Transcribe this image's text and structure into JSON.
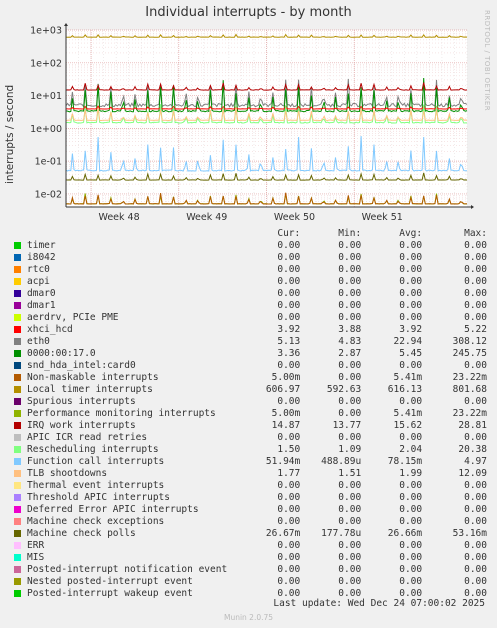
{
  "title": "Individual interrupts - by month",
  "side_label": "RRDTOOL / TOBI OETIKER",
  "ylabel": "interrupts / second",
  "legend_headers": {
    "cur": "Cur:",
    "min": "Min:",
    "avg": "Avg:",
    "max": "Max:"
  },
  "legend": [
    {
      "name": "timer",
      "color": "#00cc00",
      "cur": "0.00",
      "min": "0.00",
      "avg": "0.00",
      "max": "0.00"
    },
    {
      "name": "i8042",
      "color": "#0066b3",
      "cur": "0.00",
      "min": "0.00",
      "avg": "0.00",
      "max": "0.00"
    },
    {
      "name": "rtc0",
      "color": "#ff8000",
      "cur": "0.00",
      "min": "0.00",
      "avg": "0.00",
      "max": "0.00"
    },
    {
      "name": "acpi",
      "color": "#ffcc00",
      "cur": "0.00",
      "min": "0.00",
      "avg": "0.00",
      "max": "0.00"
    },
    {
      "name": "dmar0",
      "color": "#330099",
      "cur": "0.00",
      "min": "0.00",
      "avg": "0.00",
      "max": "0.00"
    },
    {
      "name": "dmar1",
      "color": "#990099",
      "cur": "0.00",
      "min": "0.00",
      "avg": "0.00",
      "max": "0.00"
    },
    {
      "name": "aerdrv, PCIe PME",
      "color": "#ccff00",
      "cur": "0.00",
      "min": "0.00",
      "avg": "0.00",
      "max": "0.00"
    },
    {
      "name": "xhci_hcd",
      "color": "#ff0000",
      "cur": "3.92",
      "min": "3.88",
      "avg": "3.92",
      "max": "5.22"
    },
    {
      "name": "eth0",
      "color": "#808080",
      "cur": "5.13",
      "min": "4.83",
      "avg": "22.94",
      "max": "308.12"
    },
    {
      "name": "0000:00:17.0",
      "color": "#008f00",
      "cur": "3.36",
      "min": "2.87",
      "avg": "5.45",
      "max": "245.75"
    },
    {
      "name": "snd_hda_intel:card0",
      "color": "#00487d",
      "cur": "0.00",
      "min": "0.00",
      "avg": "0.00",
      "max": "0.00"
    },
    {
      "name": "Non-maskable interrupts",
      "color": "#b35a00",
      "cur": "5.00m",
      "min": "0.00",
      "avg": "5.41m",
      "max": "23.22m"
    },
    {
      "name": "Local timer interrupts",
      "color": "#b38f00",
      "cur": "606.97",
      "min": "592.63",
      "avg": "616.13",
      "max": "801.68"
    },
    {
      "name": "Spurious interrupts",
      "color": "#6b006b",
      "cur": "0.00",
      "min": "0.00",
      "avg": "0.00",
      "max": "0.00"
    },
    {
      "name": "Performance monitoring interrupts",
      "color": "#8fb300",
      "cur": "5.00m",
      "min": "0.00",
      "avg": "5.41m",
      "max": "23.22m"
    },
    {
      "name": "IRQ work interrupts",
      "color": "#b30000",
      "cur": "14.87",
      "min": "13.77",
      "avg": "15.62",
      "max": "28.81"
    },
    {
      "name": "APIC ICR read retries",
      "color": "#bebebe",
      "cur": "0.00",
      "min": "0.00",
      "avg": "0.00",
      "max": "0.00"
    },
    {
      "name": "Rescheduling interrupts",
      "color": "#80ff80",
      "cur": "1.50",
      "min": "1.09",
      "avg": "2.04",
      "max": "20.38"
    },
    {
      "name": "Function call interrupts",
      "color": "#80c9ff",
      "cur": "51.94m",
      "min": "488.89u",
      "avg": "78.15m",
      "max": "4.97"
    },
    {
      "name": "TLB shootdowns",
      "color": "#ffc080",
      "cur": "1.77",
      "min": "1.51",
      "avg": "1.99",
      "max": "12.09"
    },
    {
      "name": "Thermal event interrupts",
      "color": "#ffe680",
      "cur": "0.00",
      "min": "0.00",
      "avg": "0.00",
      "max": "0.00"
    },
    {
      "name": "Threshold APIC interrupts",
      "color": "#aa80ff",
      "cur": "0.00",
      "min": "0.00",
      "avg": "0.00",
      "max": "0.00"
    },
    {
      "name": "Deferred Error APIC interrupts",
      "color": "#ee00cc",
      "cur": "0.00",
      "min": "0.00",
      "avg": "0.00",
      "max": "0.00"
    },
    {
      "name": "Machine check exceptions",
      "color": "#ff8080",
      "cur": "0.00",
      "min": "0.00",
      "avg": "0.00",
      "max": "0.00"
    },
    {
      "name": "Machine check polls",
      "color": "#666600",
      "cur": "26.67m",
      "min": "177.78u",
      "avg": "26.66m",
      "max": "53.16m"
    },
    {
      "name": "ERR",
      "color": "#ffbfff",
      "cur": "0.00",
      "min": "0.00",
      "avg": "0.00",
      "max": "0.00"
    },
    {
      "name": "MIS",
      "color": "#00ffcc",
      "cur": "0.00",
      "min": "0.00",
      "avg": "0.00",
      "max": "0.00"
    },
    {
      "name": "Posted-interrupt notification event",
      "color": "#cc6699",
      "cur": "0.00",
      "min": "0.00",
      "avg": "0.00",
      "max": "0.00"
    },
    {
      "name": "Nested posted-interrupt event",
      "color": "#999900",
      "cur": "0.00",
      "min": "0.00",
      "avg": "0.00",
      "max": "0.00"
    },
    {
      "name": "Posted-interrupt wakeup event",
      "color": "#00cc00",
      "cur": "0.00",
      "min": "0.00",
      "avg": "0.00",
      "max": "0.00"
    }
  ],
  "footer": "Last update: Wed Dec 24 07:00:02 2025",
  "munin_version": "Munin 2.0.75",
  "chart_data": {
    "type": "line",
    "yscale": "log",
    "ylim": [
      0.004,
      1000
    ],
    "yticks": [
      {
        "value": 0.01,
        "label": "1e-02"
      },
      {
        "value": 0.1,
        "label": "1e-01"
      },
      {
        "value": 1,
        "label": "1e+00"
      },
      {
        "value": 10,
        "label": "1e+01"
      },
      {
        "value": 100,
        "label": "1e+02"
      },
      {
        "value": 1000,
        "label": "1e+03"
      }
    ],
    "xlim": [
      "2025-11-22",
      "2025-12-24"
    ],
    "xticks": [
      {
        "value": "2025-11-24",
        "label": "Week 48"
      },
      {
        "value": "2025-12-01",
        "label": "Week 49"
      },
      {
        "value": "2025-12-08",
        "label": "Week 50"
      },
      {
        "value": "2025-12-15",
        "label": "Week 51"
      }
    ],
    "grid": true,
    "series": [
      {
        "name": "Local timer interrupts",
        "color": "#b38f00",
        "min": 592.63,
        "avg": 616.13,
        "max": 801.68,
        "cur": 606.97
      },
      {
        "name": "eth0",
        "color": "#808080",
        "min": 4.83,
        "avg": 22.94,
        "max": 308.12,
        "cur": 5.13
      },
      {
        "name": "0000:00:17.0",
        "color": "#008f00",
        "min": 2.87,
        "avg": 5.45,
        "max": 245.75,
        "cur": 3.36
      },
      {
        "name": "IRQ work interrupts",
        "color": "#b30000",
        "min": 13.77,
        "avg": 15.62,
        "max": 28.81,
        "cur": 14.87
      },
      {
        "name": "xhci_hcd",
        "color": "#ff0000",
        "min": 3.88,
        "avg": 3.92,
        "max": 5.22,
        "cur": 3.92
      },
      {
        "name": "Rescheduling interrupts",
        "color": "#80ff80",
        "min": 1.09,
        "avg": 2.04,
        "max": 20.38,
        "cur": 1.5
      },
      {
        "name": "TLB shootdowns",
        "color": "#ffc080",
        "min": 1.51,
        "avg": 1.99,
        "max": 12.09,
        "cur": 1.77
      },
      {
        "name": "Function call interrupts",
        "color": "#80c9ff",
        "min": 0.000489,
        "avg": 0.07815,
        "max": 4.97,
        "cur": 0.05194
      },
      {
        "name": "Machine check polls",
        "color": "#666600",
        "min": 0.000178,
        "avg": 0.02666,
        "max": 0.05316,
        "cur": 0.02667
      },
      {
        "name": "Performance monitoring interrupts",
        "color": "#8fb300",
        "min": 0,
        "avg": 0.00541,
        "max": 0.02322,
        "cur": 0.005
      },
      {
        "name": "Non-maskable interrupts",
        "color": "#b35a00",
        "min": 0,
        "avg": 0.00541,
        "max": 0.02322,
        "cur": 0.005
      }
    ]
  }
}
